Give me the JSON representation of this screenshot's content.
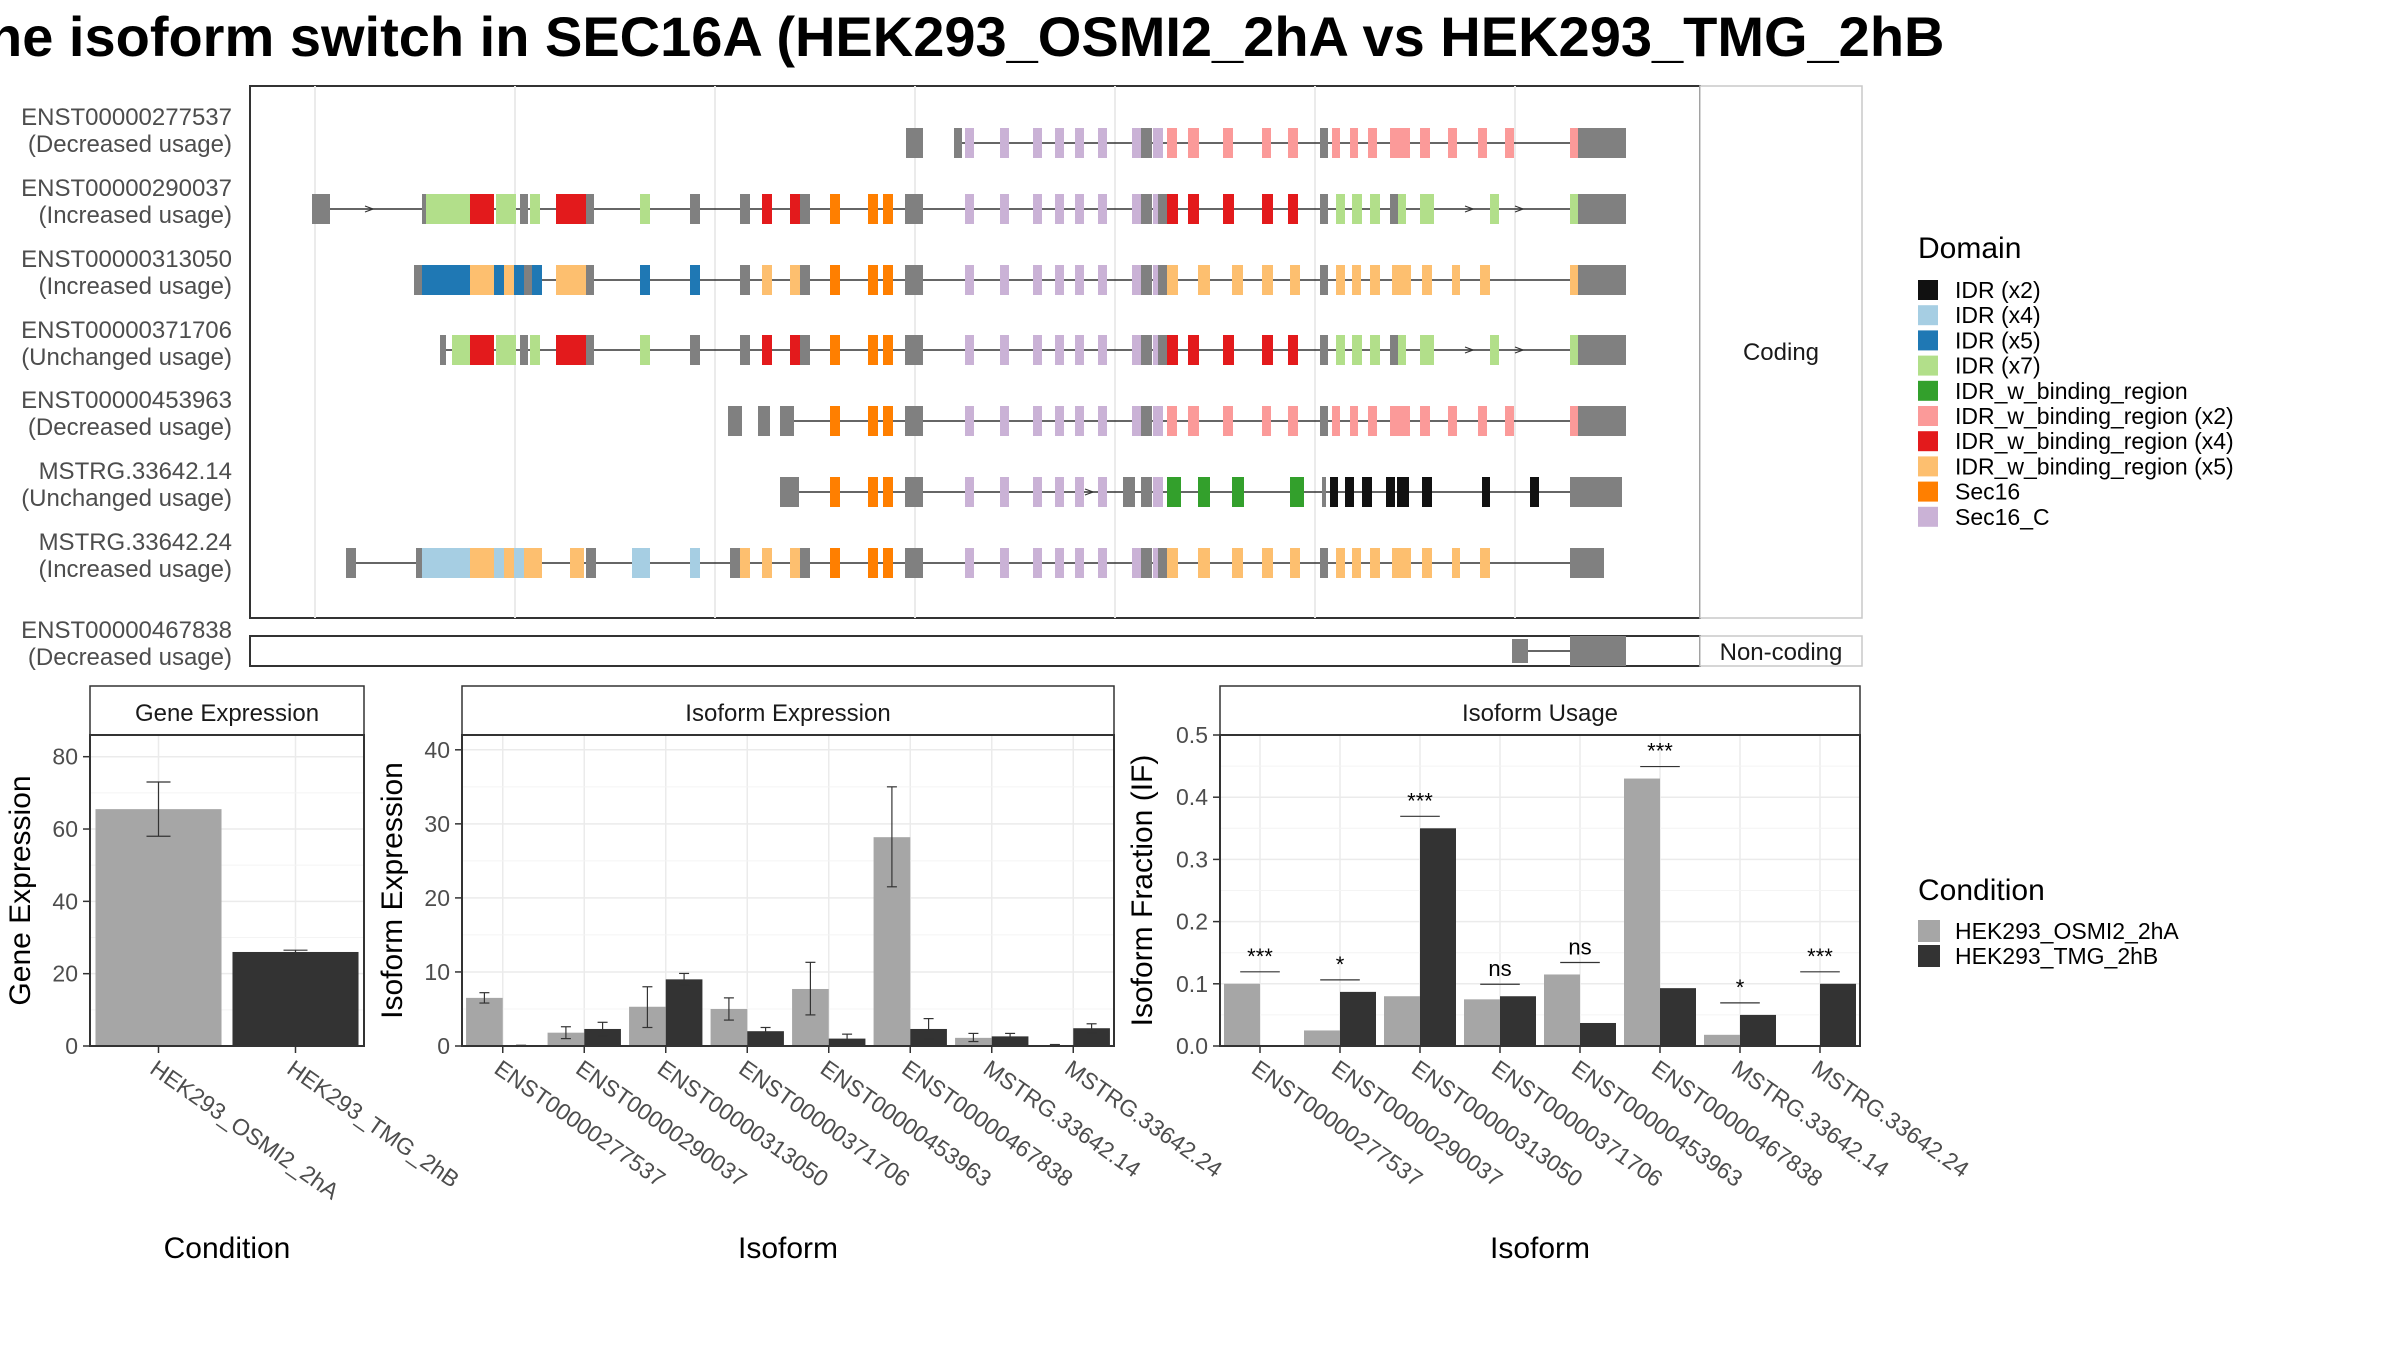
{
  "title": "ne isoform switch in SEC16A (HEK293_OSMI2_2hA vs HEK293_TMG_2hB",
  "colors": {
    "IDR (x2)": "#111111",
    "IDR (x4)": "#a6cee3",
    "IDR (x5)": "#1f78b4",
    "IDR (x7)": "#b2df8a",
    "IDR_w_binding_region": "#33a02c",
    "IDR_w_binding_region (x2)": "#fb9a99",
    "IDR_w_binding_region (x4)": "#e31a1c",
    "IDR_w_binding_region (x5)": "#fdbf6f",
    "Sec16": "#ff7f00",
    "Sec16_C": "#cab2d6",
    "noncoding_exon": "#808080",
    "condition_A": "#a6a6a6",
    "condition_B": "#333333"
  },
  "domain_legend": {
    "title": "Domain",
    "items": [
      "IDR (x2)",
      "IDR (x4)",
      "IDR (x5)",
      "IDR (x7)",
      "IDR_w_binding_region",
      "IDR_w_binding_region (x2)",
      "IDR_w_binding_region (x4)",
      "IDR_w_binding_region (x5)",
      "Sec16",
      "Sec16_C"
    ]
  },
  "condition_legend": {
    "title": "Condition",
    "items": [
      "HEK293_OSMI2_2hA",
      "HEK293_TMG_2hB"
    ]
  },
  "structure": {
    "coding_facet": "Coding",
    "noncoding_facet": "Non-coding",
    "transcripts": [
      {
        "id": "ENST00000277537",
        "usage": "(Decreased usage)",
        "coding": true,
        "pattern": "A"
      },
      {
        "id": "ENST00000290037",
        "usage": "(Increased usage)",
        "coding": true,
        "pattern": "B"
      },
      {
        "id": "ENST00000313050",
        "usage": "(Increased usage)",
        "coding": true,
        "pattern": "C"
      },
      {
        "id": "ENST00000371706",
        "usage": "(Unchanged usage)",
        "coding": true,
        "pattern": "D"
      },
      {
        "id": "ENST00000453963",
        "usage": "(Decreased usage)",
        "coding": true,
        "pattern": "E"
      },
      {
        "id": "MSTRG.33642.14",
        "usage": "(Unchanged usage)",
        "coding": true,
        "pattern": "F"
      },
      {
        "id": "MSTRG.33642.24",
        "usage": "(Increased usage)",
        "coding": true,
        "pattern": "G"
      },
      {
        "id": "ENST00000467838",
        "usage": "(Decreased usage)",
        "coding": false,
        "pattern": "H"
      }
    ]
  },
  "chart_data": [
    {
      "type": "bar",
      "title": "Gene Expression",
      "xlabel": "Condition",
      "ylabel": "Gene Expression",
      "categories": [
        "HEK293_OSMI2_2hA",
        "HEK293_TMG_2hB"
      ],
      "values": [
        65.5,
        26.0
      ],
      "errors": [
        [
          58,
          73
        ],
        [
          25.5,
          26.5
        ]
      ],
      "ylim": [
        0,
        86
      ],
      "yticks": [
        0,
        20,
        40,
        60,
        80
      ]
    },
    {
      "type": "bar",
      "title": "Isoform Expression",
      "xlabel": "Isoform",
      "ylabel": "Isoform Expression",
      "categories": [
        "ENST00000277537",
        "ENST00000290037",
        "ENST00000313050",
        "ENST00000371706",
        "ENST00000453963",
        "ENST00000467838",
        "MSTRG.33642.14",
        "MSTRG.33642.24"
      ],
      "series": [
        {
          "name": "HEK293_OSMI2_2hA",
          "values": [
            6.5,
            1.8,
            5.3,
            5.0,
            7.7,
            28.2,
            1.1,
            0.1
          ],
          "errors": [
            [
              5.8,
              7.2
            ],
            [
              1.0,
              2.6
            ],
            [
              2.5,
              8.0
            ],
            [
              3.5,
              6.5
            ],
            [
              4.2,
              11.3
            ],
            [
              21.5,
              35.0
            ],
            [
              0.6,
              1.7
            ],
            [
              0.0,
              0.2
            ]
          ]
        },
        {
          "name": "HEK293_TMG_2hB",
          "values": [
            0.0,
            2.3,
            9.0,
            2.0,
            1.0,
            2.3,
            1.3,
            2.4
          ],
          "errors": [
            [
              0.0,
              0.1
            ],
            [
              1.4,
              3.2
            ],
            [
              8.2,
              9.8
            ],
            [
              1.5,
              2.5
            ],
            [
              0.4,
              1.6
            ],
            [
              0.9,
              3.7
            ],
            [
              0.9,
              1.7
            ],
            [
              1.8,
              3.0
            ]
          ]
        }
      ],
      "ylim": [
        0,
        42
      ],
      "yticks": [
        0,
        10,
        20,
        30,
        40
      ]
    },
    {
      "type": "bar",
      "title": "Isoform Usage",
      "xlabel": "Isoform",
      "ylabel": "Isoform Fraction (IF)",
      "categories": [
        "ENST00000277537",
        "ENST00000290037",
        "ENST00000313050",
        "ENST00000371706",
        "ENST00000453963",
        "ENST00000467838",
        "MSTRG.33642.14",
        "MSTRG.33642.24"
      ],
      "series": [
        {
          "name": "HEK293_OSMI2_2hA",
          "values": [
            0.1,
            0.025,
            0.08,
            0.075,
            0.115,
            0.43,
            0.018,
            0.0
          ]
        },
        {
          "name": "HEK293_TMG_2hB",
          "values": [
            0.0,
            0.087,
            0.35,
            0.08,
            0.037,
            0.093,
            0.05,
            0.1
          ]
        }
      ],
      "significance": [
        "***",
        "*",
        "***",
        "ns",
        "ns",
        "***",
        "*",
        "***"
      ],
      "ylim": [
        0,
        0.5
      ],
      "yticks": [
        0.0,
        0.1,
        0.2,
        0.3,
        0.4,
        0.5
      ],
      "ytick_labels": [
        "0.0",
        "0.1",
        "0.2",
        "0.3",
        "0.4",
        "0.5"
      ]
    }
  ]
}
